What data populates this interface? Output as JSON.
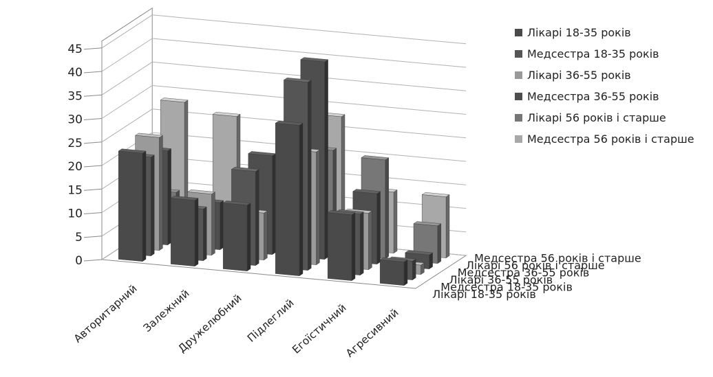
{
  "chart_data": {
    "type": "bar",
    "subtype": "3d-column",
    "categories": [
      "Авторитарний",
      "Залежний",
      "Дружелюбний",
      "Підлеглий",
      "Егоїстичний",
      "Агресивний"
    ],
    "series": [
      {
        "name": "Лікарі 18-35 років",
        "color": "#4a4a4a",
        "values": [
          23,
          14,
          14,
          32,
          14,
          5
        ]
      },
      {
        "name": "Медсестра 18-35 років",
        "color": "#555555",
        "values": [
          21,
          11,
          20,
          40,
          13,
          4
        ]
      },
      {
        "name": "Лікарі 36-55 років",
        "color": "#9a9a9a",
        "values": [
          24,
          13,
          10,
          24,
          12,
          2
        ]
      },
      {
        "name": "Медсестра 36-55 років",
        "color": "#4e4e4e",
        "values": [
          20,
          10,
          21,
          42,
          15,
          3
        ]
      },
      {
        "name": "Лікарі 56 років і старше",
        "color": "#777777",
        "values": [
          10,
          4,
          4,
          22,
          21,
          8
        ]
      },
      {
        "name": "Медсестра 56 років і старше",
        "color": "#a8a8a8",
        "values": [
          28,
          26,
          15,
          28,
          13,
          13
        ]
      }
    ],
    "ylim": [
      0,
      45
    ],
    "yticks": [
      "0",
      "5",
      "10",
      "15",
      "20",
      "25",
      "30",
      "35",
      "40",
      "45"
    ],
    "grid": true,
    "legend_position": "right"
  }
}
